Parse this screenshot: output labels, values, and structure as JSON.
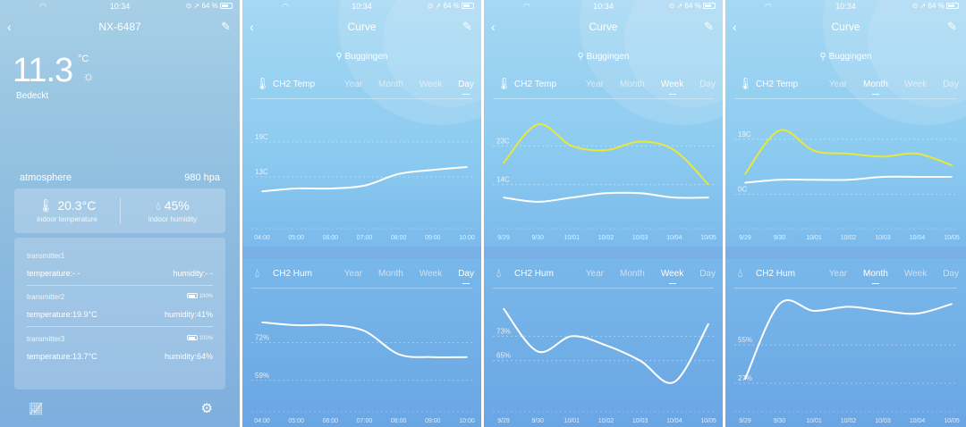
{
  "status": {
    "time": "10:34",
    "battery": "64 %"
  },
  "home": {
    "device": "NX-6487",
    "temperature": "11.3",
    "unit": "°C",
    "condition": "Bedeckt",
    "atmosphere_label": "atmosphere",
    "atmosphere_value": "980 hpa",
    "indoor_temp": "20.3°C",
    "indoor_temp_label": "indoor temperature",
    "indoor_hum": "45%",
    "indoor_hum_label": "indoor humidity",
    "transmitters": [
      {
        "name": "transmitter1",
        "battery": "",
        "temperature": "temperature:- -",
        "humidity": "humidity:- -"
      },
      {
        "name": "transmitter2",
        "battery": "100%",
        "temperature": "temperature:19.9°C",
        "humidity": "humidity:41%"
      },
      {
        "name": "transmitter3",
        "battery": "100%",
        "temperature": "temperature:13.7°C",
        "humidity": "humidity:64%"
      }
    ]
  },
  "curve": {
    "title": "Curve",
    "location": "Buggingen",
    "temp_label": "CH2 Temp",
    "hum_label": "CH2 Hum",
    "tabs": [
      "Year",
      "Month",
      "Week",
      "Day"
    ]
  },
  "chart_data": [
    {
      "type": "line",
      "panel": "day",
      "metric": "temp",
      "active_tab": "Day",
      "x": [
        "04:00",
        "05:00",
        "06:00",
        "07:00",
        "08:00",
        "09:00",
        "10:00"
      ],
      "y_ticks": [
        "19C",
        "13C"
      ],
      "series": [
        {
          "color": "#ffffff",
          "values": [
            10.5,
            11.0,
            11.0,
            11.5,
            13.5,
            14.2,
            14.7
          ]
        }
      ]
    },
    {
      "type": "line",
      "panel": "day",
      "metric": "hum",
      "active_tab": "Day",
      "x": [
        "04:00",
        "05:00",
        "06:00",
        "07:00",
        "08:00",
        "09:00",
        "10:00"
      ],
      "y_ticks": [
        "72%",
        "59%"
      ],
      "series": [
        {
          "color": "#ffffff",
          "values": [
            79,
            78,
            78,
            76,
            68,
            67,
            67
          ]
        }
      ]
    },
    {
      "type": "line",
      "panel": "week",
      "metric": "temp",
      "active_tab": "Week",
      "x": [
        "9/29",
        "9/30",
        "10/01",
        "10/02",
        "10/03",
        "10/04",
        "10/05"
      ],
      "y_ticks": [
        "23C",
        "14C"
      ],
      "series": [
        {
          "color": "#e8e83a",
          "values": [
            19,
            28,
            23,
            22,
            24,
            22,
            14
          ]
        },
        {
          "color": "#ffffff",
          "values": [
            11,
            10,
            11,
            12,
            12,
            11,
            11
          ]
        }
      ]
    },
    {
      "type": "line",
      "panel": "week",
      "metric": "hum",
      "active_tab": "Week",
      "x": [
        "9/29",
        "9/30",
        "10/01",
        "10/02",
        "10/03",
        "10/04",
        "10/05"
      ],
      "y_ticks": [
        "73%",
        "65%"
      ],
      "series": [
        {
          "color": "#ffffff",
          "values": [
            82,
            68,
            73,
            70,
            65,
            58,
            77
          ]
        }
      ]
    },
    {
      "type": "line",
      "panel": "month",
      "metric": "temp",
      "active_tab": "Month",
      "x": [
        "9/29",
        "9/30",
        "10/01",
        "10/02",
        "10/03",
        "10/04",
        "10/05"
      ],
      "y_ticks": [
        "19C",
        "0C"
      ],
      "series": [
        {
          "color": "#e8e83a",
          "values": [
            7,
            22,
            15,
            14,
            13,
            14,
            10
          ]
        },
        {
          "color": "#ffffff",
          "values": [
            4,
            5,
            5,
            5,
            6,
            6,
            6
          ]
        }
      ]
    },
    {
      "type": "line",
      "panel": "month",
      "metric": "hum",
      "active_tab": "Month",
      "x": [
        "9/29",
        "9/30",
        "10/01",
        "10/02",
        "10/03",
        "10/04",
        "10/05"
      ],
      "y_ticks": [
        "55%",
        "27%"
      ],
      "series": [
        {
          "color": "#ffffff",
          "values": [
            30,
            85,
            80,
            83,
            80,
            78,
            85
          ]
        }
      ]
    }
  ]
}
